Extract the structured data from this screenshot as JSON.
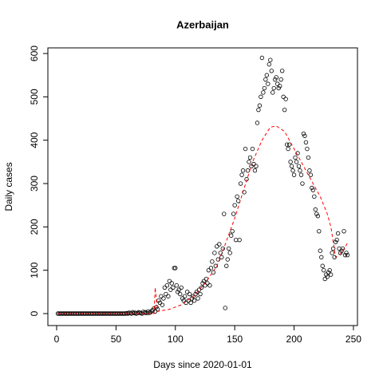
{
  "chart_data": {
    "type": "scatter",
    "title": "Azerbaijan",
    "xlabel": "Days since 2020-01-01",
    "ylabel": "Daily cases",
    "x": [
      1,
      2,
      3,
      4,
      5,
      6,
      7,
      8,
      9,
      10,
      11,
      12,
      13,
      14,
      15,
      16,
      17,
      18,
      19,
      20,
      21,
      22,
      23,
      24,
      25,
      26,
      27,
      28,
      29,
      30,
      31,
      32,
      33,
      34,
      35,
      36,
      37,
      38,
      39,
      40,
      41,
      42,
      43,
      44,
      45,
      46,
      47,
      48,
      49,
      50,
      51,
      52,
      53,
      54,
      55,
      56,
      57,
      58,
      59,
      60,
      61,
      62,
      63,
      64,
      65,
      66,
      67,
      68,
      69,
      70,
      71,
      72,
      73,
      74,
      75,
      76,
      77,
      78,
      79,
      80,
      81,
      82,
      83,
      84,
      85,
      86,
      87,
      88,
      89,
      90,
      91,
      92,
      93,
      94,
      95,
      96,
      97,
      98,
      99,
      100,
      101,
      102,
      103,
      104,
      105,
      106,
      107,
      108,
      109,
      110,
      111,
      112,
      113,
      114,
      115,
      116,
      117,
      118,
      119,
      120,
      121,
      122,
      123,
      124,
      125,
      126,
      127,
      128,
      129,
      130,
      131,
      132,
      133,
      134,
      135,
      136,
      137,
      138,
      139,
      140,
      141,
      142,
      143,
      144,
      145,
      146,
      147,
      148,
      149,
      150,
      151,
      152,
      153,
      154,
      155,
      156,
      157,
      158,
      159,
      160,
      161,
      162,
      163,
      164,
      165,
      166,
      167,
      168,
      169,
      170,
      171,
      172,
      173,
      174,
      175,
      176,
      177,
      178,
      179,
      180,
      181,
      182,
      183,
      184,
      185,
      186,
      187,
      188,
      189,
      190,
      191,
      192,
      193,
      194,
      195,
      196,
      197,
      198,
      199,
      200,
      201,
      202,
      203,
      204,
      205,
      206,
      207,
      208,
      209,
      210,
      211,
      212,
      213,
      214,
      215,
      216,
      217,
      218,
      219,
      220,
      221,
      222,
      223,
      224,
      225,
      226,
      227,
      228,
      229,
      230,
      231,
      232,
      233,
      234,
      235,
      236,
      237,
      238,
      239,
      240,
      241,
      242,
      243,
      244,
      245
    ],
    "values": [
      0,
      0,
      0,
      0,
      0,
      0,
      0,
      0,
      0,
      0,
      0,
      0,
      0,
      0,
      0,
      0,
      0,
      0,
      0,
      0,
      0,
      0,
      0,
      0,
      0,
      0,
      0,
      0,
      0,
      0,
      0,
      0,
      0,
      0,
      0,
      0,
      0,
      0,
      0,
      0,
      0,
      0,
      0,
      0,
      0,
      0,
      0,
      0,
      0,
      0,
      0,
      0,
      0,
      0,
      0,
      0,
      0,
      0,
      1,
      0,
      2,
      1,
      0,
      3,
      1,
      2,
      0,
      1,
      3,
      2,
      1,
      0,
      4,
      2,
      3,
      1,
      5,
      2,
      3,
      6,
      8,
      12,
      5,
      15,
      10,
      30,
      25,
      40,
      20,
      35,
      60,
      45,
      65,
      40,
      75,
      55,
      70,
      60,
      105,
      105,
      65,
      50,
      55,
      45,
      60,
      35,
      30,
      40,
      25,
      50,
      30,
      45,
      25,
      35,
      40,
      30,
      45,
      50,
      35,
      55,
      45,
      60,
      70,
      75,
      65,
      80,
      70,
      100,
      65,
      105,
      120,
      95,
      140,
      110,
      155,
      125,
      160,
      140,
      130,
      150,
      230,
      13,
      110,
      125,
      150,
      140,
      180,
      190,
      230,
      250,
      170,
      270,
      260,
      170,
      300,
      320,
      330,
      280,
      380,
      310,
      330,
      350,
      360,
      340,
      380,
      345,
      330,
      340,
      440,
      470,
      480,
      500,
      590,
      510,
      520,
      540,
      550,
      530,
      575,
      585,
      560,
      510,
      520,
      540,
      545,
      530,
      520,
      525,
      540,
      560,
      500,
      470,
      495,
      390,
      380,
      390,
      350,
      340,
      330,
      320,
      360,
      350,
      370,
      340,
      330,
      320,
      300,
      415,
      410,
      395,
      380,
      360,
      330,
      320,
      290,
      285,
      270,
      240,
      230,
      225,
      190,
      145,
      130,
      110,
      100,
      80,
      90,
      85,
      95,
      100,
      90,
      140,
      150,
      130,
      165,
      170,
      185,
      150,
      140,
      145,
      150,
      190,
      135,
      140,
      135
    ],
    "point_color": "#000000",
    "smooth": {
      "color": "#ff0000",
      "x": [
        1,
        82,
        83,
        85,
        95,
        105,
        115,
        125,
        135,
        142,
        150,
        158,
        165,
        173,
        180,
        185,
        192,
        200,
        210,
        222,
        228,
        231,
        235,
        240,
        245
      ],
      "values": [
        0,
        0,
        60,
        5,
        10,
        20,
        40,
        70,
        110,
        160,
        220,
        290,
        350,
        400,
        430,
        433,
        420,
        380,
        330,
        270,
        230,
        200,
        130,
        140,
        163
      ]
    },
    "xlim": [
      -7.4,
      253.4
    ],
    "ylim": [
      -27.6,
      613
    ],
    "xticks": [
      0,
      50,
      100,
      150,
      200,
      250
    ],
    "yticks": [
      0,
      100,
      200,
      300,
      400,
      500,
      600
    ]
  }
}
